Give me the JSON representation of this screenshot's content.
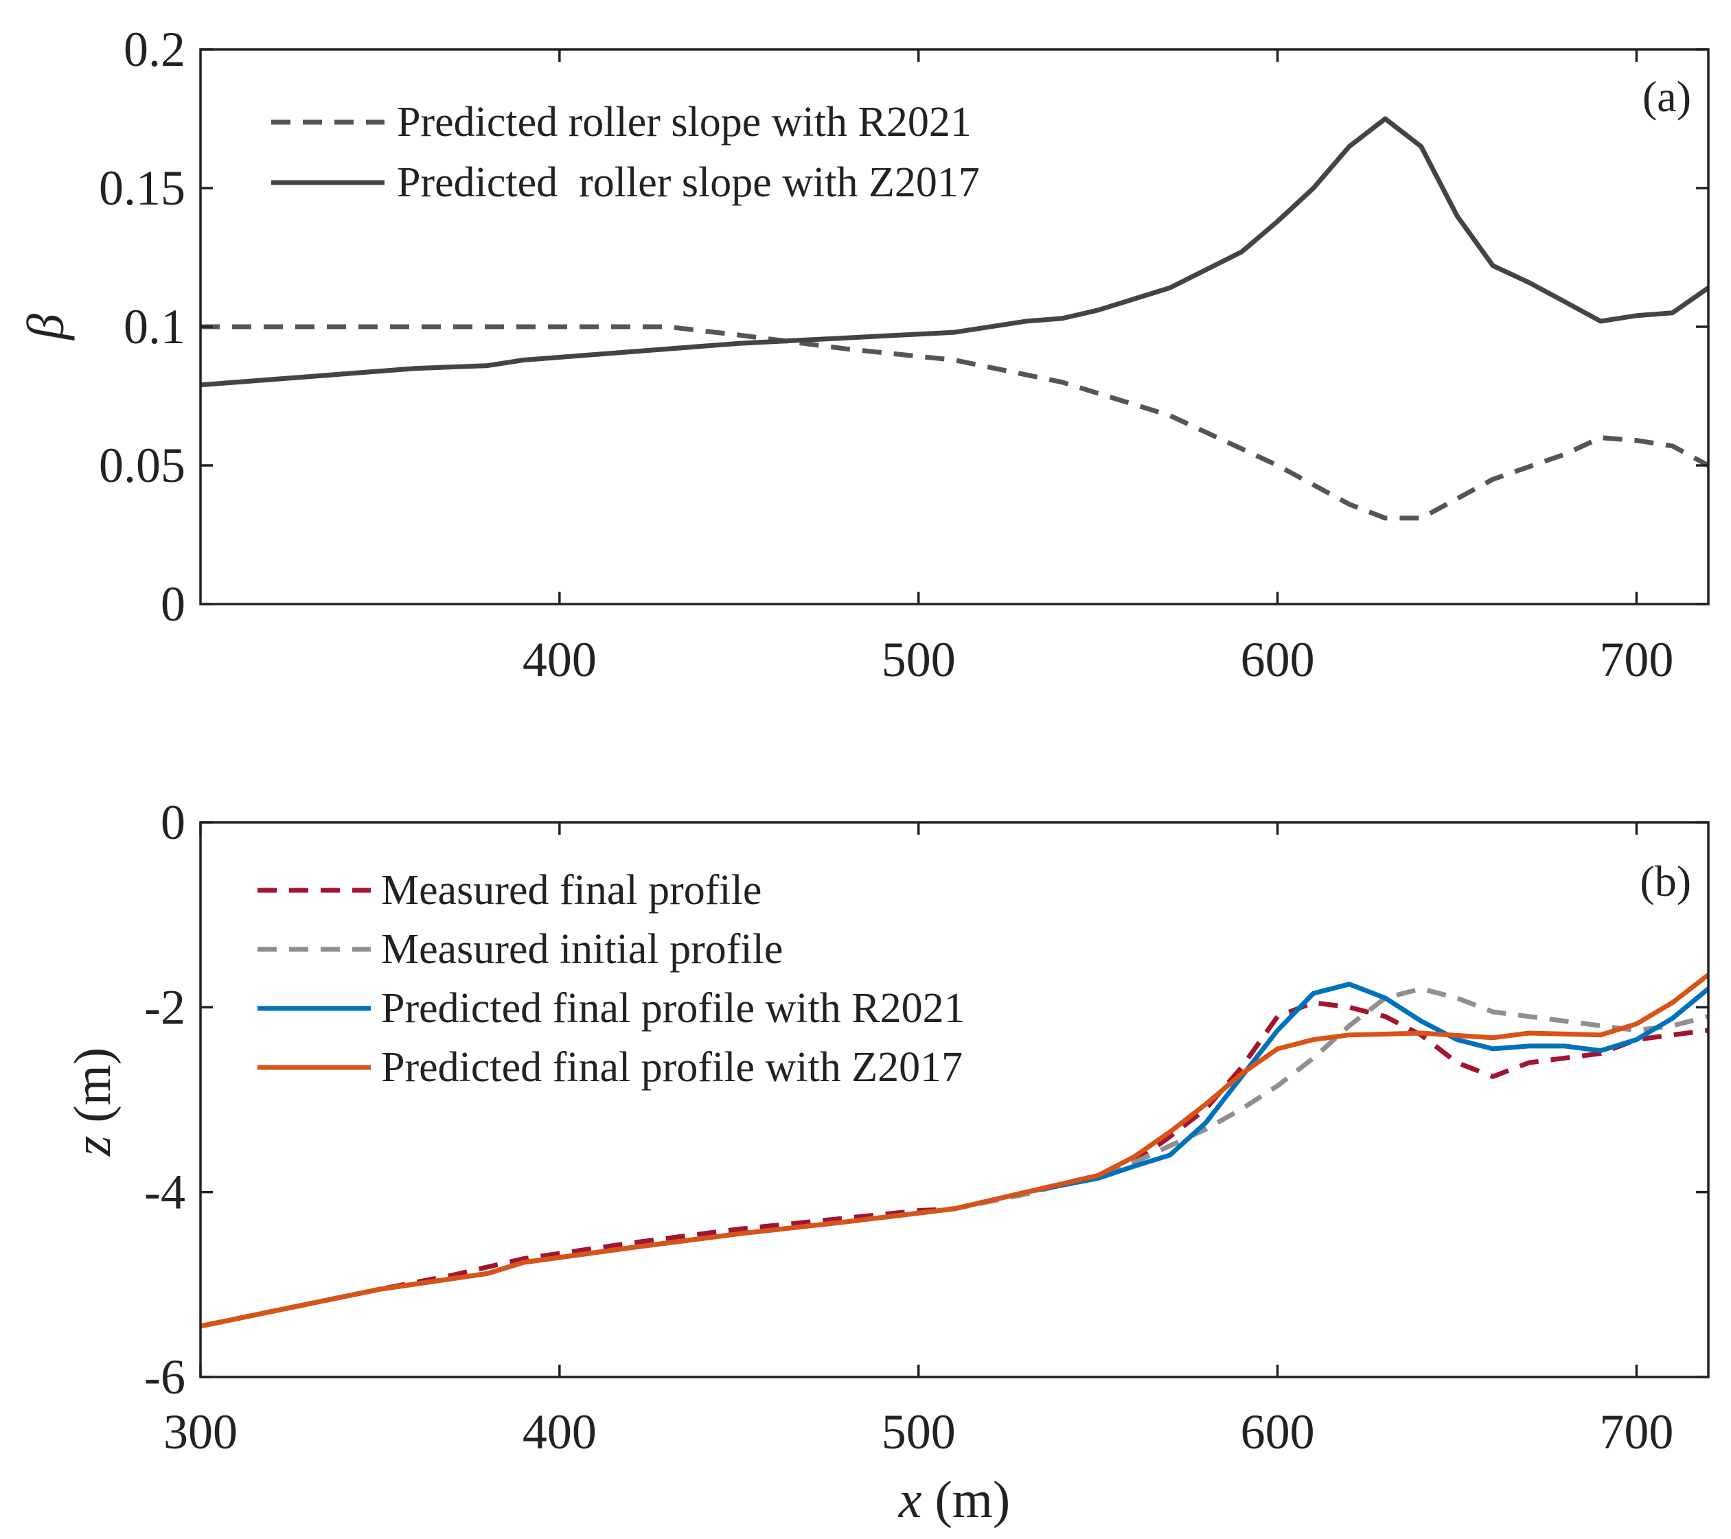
{
  "chart_data": [
    {
      "type": "line",
      "panel_tag": "(a)",
      "title": "",
      "xlabel": "",
      "ylabel": "β",
      "xlim": [
        300,
        720
      ],
      "ylim": [
        0,
        0.2
      ],
      "xticks": [
        400,
        500,
        600,
        700
      ],
      "yticks": [
        0,
        0.05,
        0.1,
        0.15,
        0.2
      ],
      "xtick_labels": [
        "400",
        "500",
        "600",
        "700"
      ],
      "ytick_labels": [
        "0",
        "0.05",
        "0.1",
        "0.15",
        "0.2"
      ],
      "legend_position": "top-left",
      "series": [
        {
          "name": "Predicted roller slope with R2021",
          "color": "#555555",
          "dash": "dashed",
          "x": [
            300,
            350,
            400,
            430,
            450,
            480,
            510,
            540,
            570,
            600,
            620,
            630,
            640,
            660,
            680,
            690,
            700,
            710,
            720
          ],
          "y": [
            0.1,
            0.1,
            0.1,
            0.1,
            0.097,
            0.092,
            0.088,
            0.08,
            0.068,
            0.05,
            0.036,
            0.031,
            0.031,
            0.045,
            0.054,
            0.06,
            0.059,
            0.057,
            0.05
          ]
        },
        {
          "name": "Predicted  roller slope with Z2017",
          "color": "#444444",
          "dash": "solid",
          "x": [
            300,
            330,
            360,
            380,
            390,
            420,
            450,
            480,
            510,
            530,
            540,
            550,
            570,
            590,
            600,
            610,
            620,
            630,
            640,
            650,
            660,
            670,
            680,
            690,
            700,
            710,
            720
          ],
          "y": [
            0.079,
            0.082,
            0.085,
            0.086,
            0.088,
            0.091,
            0.094,
            0.096,
            0.098,
            0.102,
            0.103,
            0.106,
            0.114,
            0.127,
            0.138,
            0.15,
            0.165,
            0.175,
            0.165,
            0.14,
            0.122,
            0.116,
            0.109,
            0.102,
            0.104,
            0.105,
            0.114
          ]
        }
      ]
    },
    {
      "type": "line",
      "panel_tag": "(b)",
      "title": "",
      "xlabel": "x (m)",
      "ylabel": "z (m)",
      "xlim": [
        300,
        720
      ],
      "ylim": [
        -6,
        0
      ],
      "xticks": [
        300,
        400,
        500,
        600,
        700
      ],
      "yticks": [
        -6,
        -4,
        -2,
        0
      ],
      "xtick_labels": [
        "300",
        "400",
        "500",
        "600",
        "700"
      ],
      "ytick_labels": [
        "-6",
        "-4",
        "-2",
        "0"
      ],
      "legend_position": "top-left",
      "series": [
        {
          "name": "Measured final profile",
          "color": "#a2142f",
          "dash": "dashed",
          "x": [
            300,
            350,
            370,
            390,
            420,
            450,
            480,
            500,
            510,
            530,
            550,
            560,
            570,
            580,
            590,
            600,
            610,
            620,
            630,
            640,
            650,
            660,
            670,
            690,
            700,
            710,
            720
          ],
          "y": [
            -5.45,
            -5.05,
            -4.9,
            -4.72,
            -4.55,
            -4.4,
            -4.28,
            -4.2,
            -4.18,
            -4.0,
            -3.82,
            -3.68,
            -3.4,
            -3.1,
            -2.65,
            -2.1,
            -1.95,
            -2.0,
            -2.1,
            -2.3,
            -2.6,
            -2.75,
            -2.6,
            -2.5,
            -2.35,
            -2.3,
            -2.25
          ]
        },
        {
          "name": "Measured initial profile",
          "color": "#8f8f8f",
          "dash": "dashed",
          "x": [
            300,
            350,
            380,
            390,
            420,
            450,
            480,
            510,
            530,
            550,
            560,
            570,
            580,
            590,
            600,
            610,
            620,
            630,
            640,
            650,
            660,
            680,
            700,
            710,
            720
          ],
          "y": [
            -5.45,
            -5.05,
            -4.88,
            -4.76,
            -4.6,
            -4.45,
            -4.32,
            -4.18,
            -4.02,
            -3.82,
            -3.68,
            -3.5,
            -3.32,
            -3.1,
            -2.85,
            -2.55,
            -2.2,
            -1.9,
            -1.8,
            -1.9,
            -2.05,
            -2.15,
            -2.25,
            -2.2,
            -2.1
          ]
        },
        {
          "name": "Predicted final profile with R2021",
          "color": "#0072bd",
          "dash": "solid",
          "x": [
            300,
            350,
            380,
            390,
            420,
            450,
            480,
            510,
            530,
            550,
            560,
            570,
            580,
            590,
            600,
            610,
            620,
            630,
            640,
            650,
            660,
            670,
            680,
            690,
            700,
            710,
            720
          ],
          "y": [
            -5.45,
            -5.05,
            -4.88,
            -4.76,
            -4.6,
            -4.45,
            -4.32,
            -4.18,
            -4.0,
            -3.85,
            -3.72,
            -3.6,
            -3.25,
            -2.75,
            -2.25,
            -1.85,
            -1.75,
            -1.9,
            -2.15,
            -2.35,
            -2.45,
            -2.42,
            -2.42,
            -2.47,
            -2.35,
            -2.12,
            -1.8
          ]
        },
        {
          "name": "Predicted final profile with Z2017",
          "color": "#d95319",
          "dash": "solid",
          "x": [
            300,
            350,
            380,
            390,
            420,
            450,
            480,
            510,
            530,
            550,
            560,
            570,
            580,
            590,
            600,
            610,
            620,
            640,
            660,
            670,
            690,
            700,
            710,
            720
          ],
          "y": [
            -5.45,
            -5.05,
            -4.88,
            -4.76,
            -4.6,
            -4.45,
            -4.32,
            -4.18,
            -4.0,
            -3.82,
            -3.62,
            -3.35,
            -3.05,
            -2.72,
            -2.45,
            -2.35,
            -2.3,
            -2.28,
            -2.33,
            -2.28,
            -2.3,
            -2.18,
            -1.95,
            -1.65
          ]
        }
      ]
    }
  ]
}
